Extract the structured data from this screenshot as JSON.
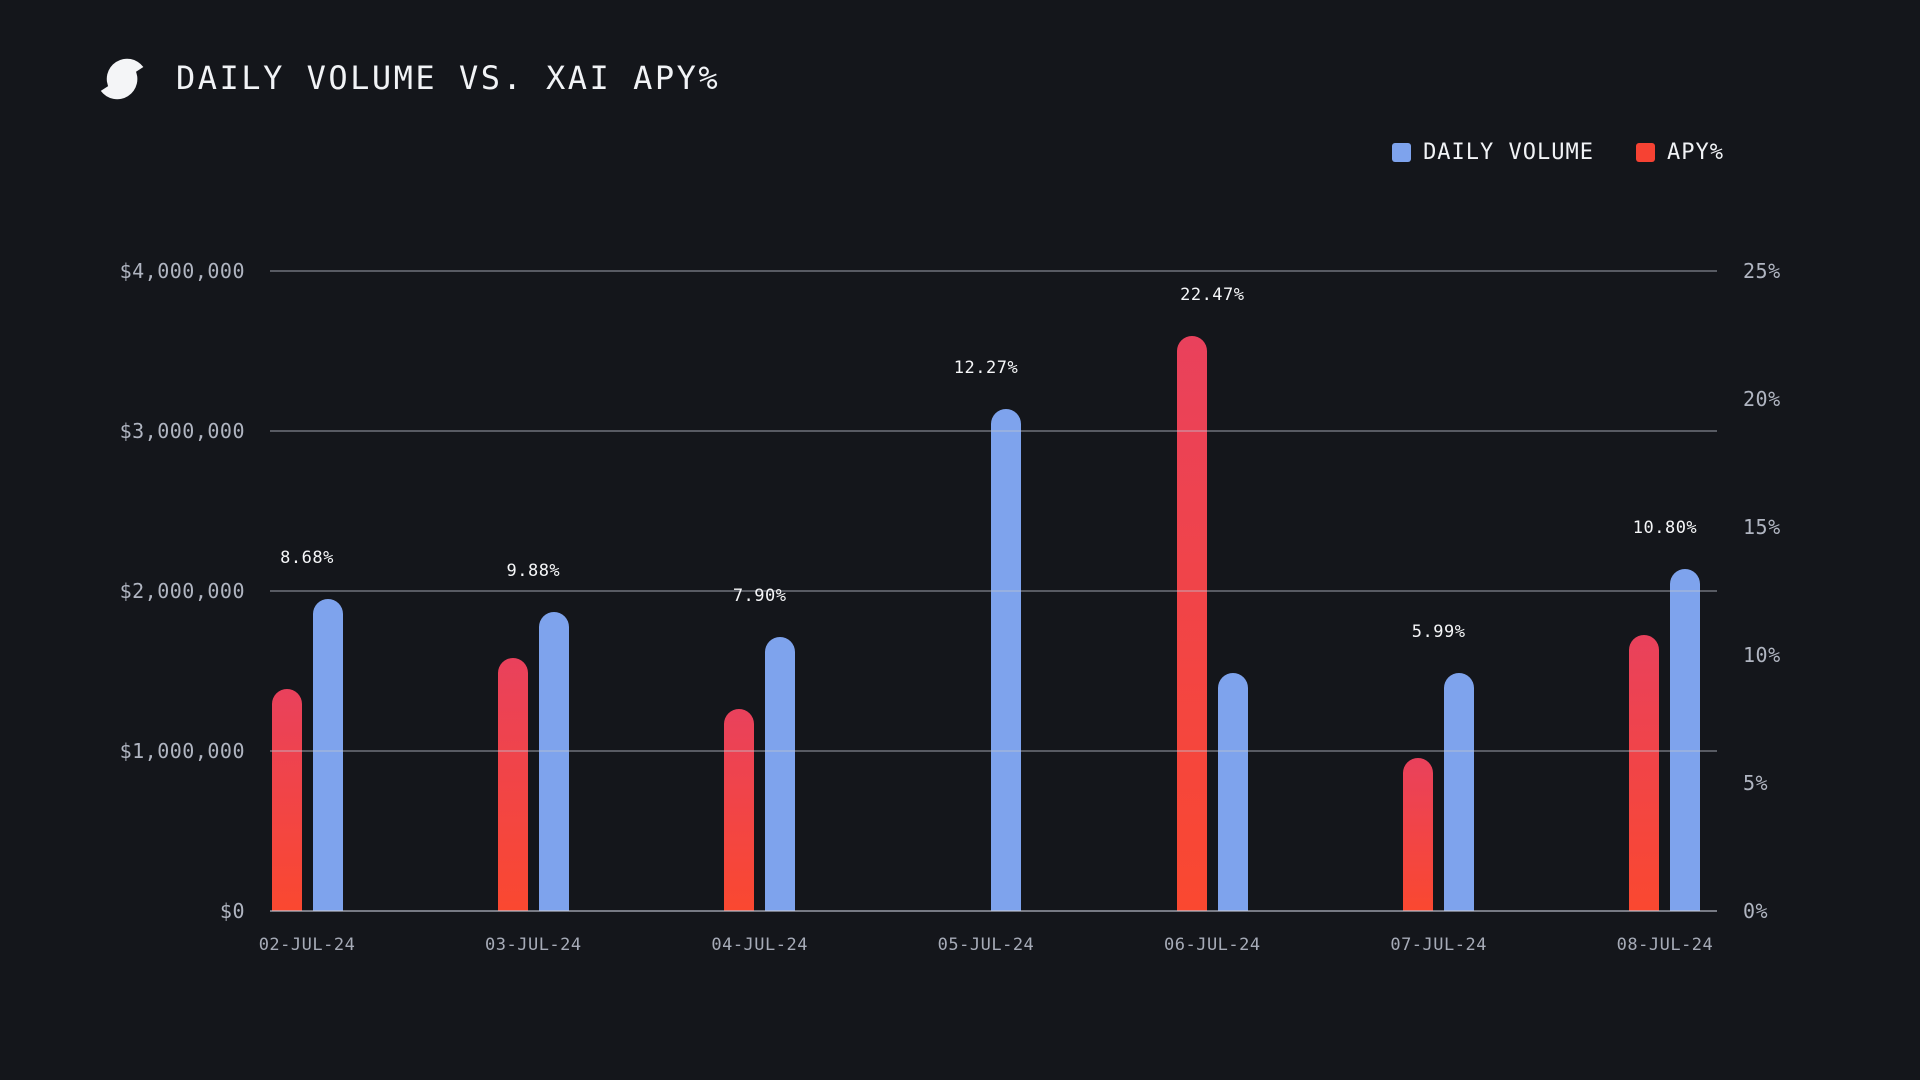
{
  "header": {
    "title": "DAILY VOLUME VS. XAI APY%",
    "logo": "brand-mark-circle-slash"
  },
  "legend": {
    "items": [
      {
        "label": "DAILY VOLUME",
        "color": "#7ea3ed"
      },
      {
        "label": "APY%",
        "color": "#f64233"
      }
    ]
  },
  "chart_data": {
    "type": "bar",
    "title": "DAILY VOLUME VS. XAI APY%",
    "grid": "horizontal",
    "legend_position": "top-right",
    "categories": [
      "02-JUL-24",
      "03-JUL-24",
      "04-JUL-24",
      "05-JUL-24",
      "06-JUL-24",
      "07-JUL-24",
      "08-JUL-24"
    ],
    "series": [
      {
        "name": "DAILY VOLUME",
        "axis": "left",
        "unit": "USD",
        "color": "#7ea3ed",
        "values": [
          1950000,
          1870000,
          1710000,
          3140000,
          1490000,
          1490000,
          2140000
        ]
      },
      {
        "name": "APY%",
        "axis": "right",
        "unit": "%",
        "color_top": "#e9415c",
        "color_bottom": "#fa4830",
        "values": [
          8.68,
          9.88,
          7.9,
          12.27,
          22.47,
          5.99,
          10.8
        ],
        "bar_visible": [
          true,
          true,
          true,
          false,
          true,
          true,
          true
        ]
      }
    ],
    "point_labels": [
      "8.68%",
      "9.88%",
      "7.90%",
      "12.27%",
      "22.47%",
      "5.99%",
      "10.80%"
    ],
    "left_axis": {
      "min": 0,
      "max": 4000000,
      "ticks": [
        {
          "label": "$0",
          "value": 0
        },
        {
          "label": "$1,000,000",
          "value": 1000000
        },
        {
          "label": "$2,000,000",
          "value": 2000000
        },
        {
          "label": "$3,000,000",
          "value": 3000000
        },
        {
          "label": "$4,000,000",
          "value": 4000000
        }
      ]
    },
    "right_axis": {
      "min": 0,
      "max": 25,
      "ticks": [
        {
          "label": "0%",
          "value": 0
        },
        {
          "label": "5%",
          "value": 5
        },
        {
          "label": "10%",
          "value": 10
        },
        {
          "label": "15%",
          "value": 15
        },
        {
          "label": "20%",
          "value": 20
        },
        {
          "label": "25%",
          "value": 25
        }
      ]
    }
  },
  "colors": {
    "background": "#14161b",
    "title_text": "#f1f3f6",
    "axis_text": "#b0b5c1",
    "date_text": "#a6abb7",
    "value_label_text": "#f5f6f8",
    "grid_line": "rgba(190,196,208,0.40)",
    "baseline": "rgba(200,206,218,0.55)",
    "volume_bar": "#7ea3ed",
    "apy_bar_top": "#e9415c",
    "apy_bar_bottom": "#fa4830",
    "legend_apy_swatch": "#f64233"
  }
}
